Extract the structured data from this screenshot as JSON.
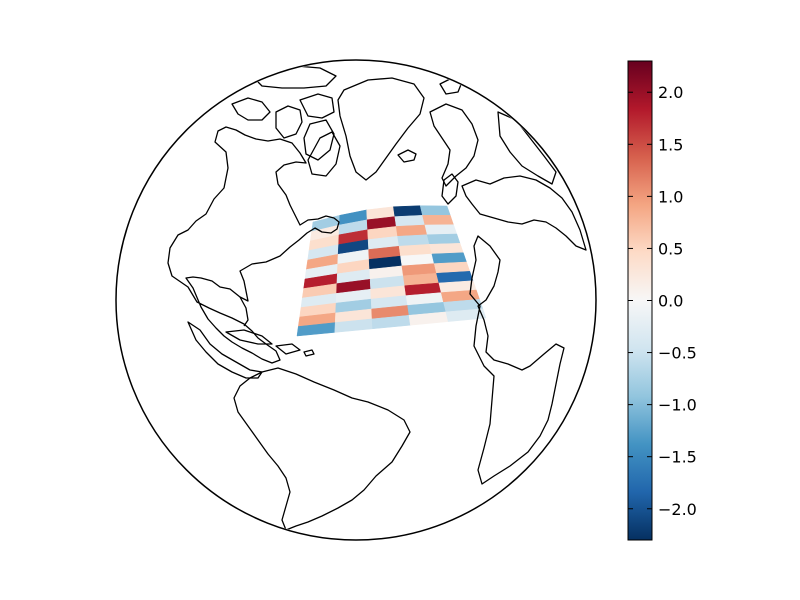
{
  "colors": {
    "background": "#ffffff",
    "ocean": "#ffffff",
    "coast": "#000000",
    "colormap": [
      "#053061",
      "#2166ac",
      "#4393c3",
      "#92c5de",
      "#d1e5f0",
      "#f7f7f7",
      "#fddbc7",
      "#f4a582",
      "#d6604d",
      "#b2182b",
      "#67001f"
    ]
  },
  "colorbar": {
    "min": -2.3,
    "max": 2.3,
    "ticks": [
      "2.0",
      "1.5",
      "1.0",
      "0.5",
      "0.0",
      "−0.5",
      "−1.0",
      "−1.5",
      "−2.0"
    ],
    "tick_values": [
      2.0,
      1.5,
      1.0,
      0.5,
      0.0,
      -0.5,
      -1.0,
      -1.5,
      -2.0
    ]
  },
  "grid": {
    "columns": 5,
    "rows": 12,
    "values": [
      [
        -0.8,
        -1.4,
        0.3,
        -2.2,
        -0.9
      ],
      [
        0.2,
        -0.6,
        2.0,
        -0.4,
        0.8
      ],
      [
        0.4,
        1.7,
        0.5,
        0.9,
        -0.2
      ],
      [
        -0.4,
        -2.1,
        -0.3,
        -0.6,
        -0.8
      ],
      [
        0.9,
        -0.1,
        1.3,
        0.4,
        0.3
      ],
      [
        -0.2,
        0.5,
        -2.3,
        0.0,
        -1.3
      ],
      [
        1.8,
        -0.3,
        0.1,
        1.0,
        0.5
      ],
      [
        0.6,
        2.0,
        -0.5,
        0.8,
        -1.8
      ],
      [
        -0.3,
        -0.2,
        0.3,
        1.8,
        0.2
      ],
      [
        0.5,
        -0.8,
        -0.4,
        -0.1,
        0.9
      ],
      [
        0.9,
        0.3,
        1.1,
        -0.9,
        -0.6
      ],
      [
        -1.3,
        -0.5,
        -0.6,
        0.1,
        -0.3
      ]
    ]
  }
}
